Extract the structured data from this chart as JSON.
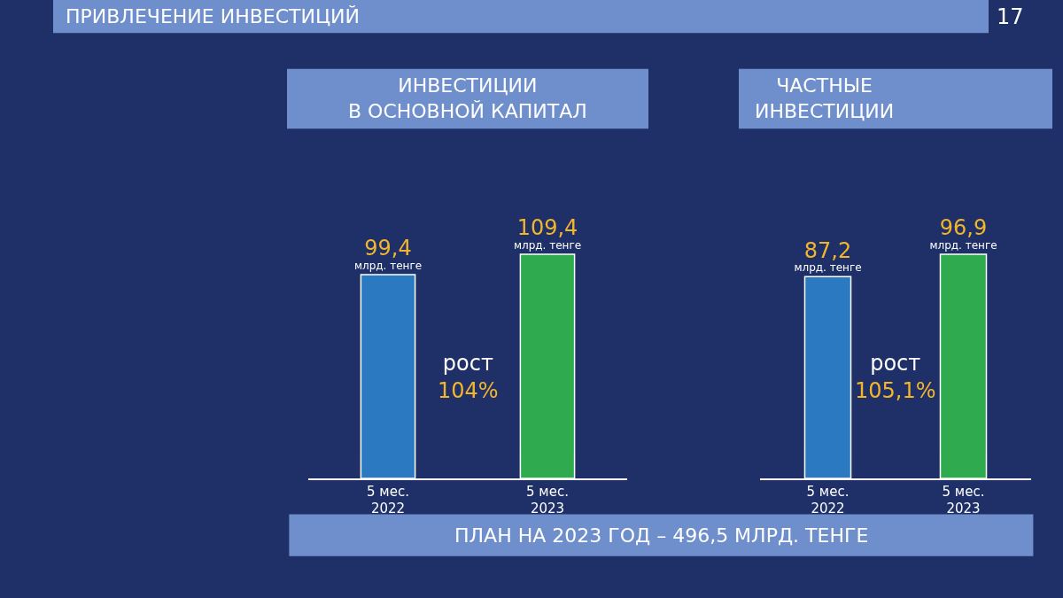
{
  "chart_data": [
    {
      "type": "other",
      "title": "ПРИВЛЕЧЕНИЕ ИНВЕСТИЦИЙ",
      "annotations": [
        "17",
        "ПЛАН НА 2023 ГОД – 496,5 МЛРД. ТЕНГЕ"
      ]
    },
    {
      "type": "bar",
      "title": "ИНВЕСТИЦИИ\nВ ОСНОВНОЙ КАПИТАЛ",
      "categories": [
        "5 мес.\n2022",
        "5 мес.\n2023"
      ],
      "values": [
        99.4,
        109.4
      ],
      "colors": [
        "#2a79c1",
        "#2faa4f"
      ],
      "value_labels": [
        "99,4\nмлрд. тенге",
        "109,4\nмлрд. тенге"
      ],
      "annotations": [
        "рост\n104%"
      ]
    },
    {
      "type": "bar",
      "title": "ЧАСТНЫЕ\nИНВЕСТИЦИИ",
      "categories": [
        "5 мес.\n2022",
        "5 мес.\n2023"
      ],
      "values": [
        87.2,
        96.9
      ],
      "colors": [
        "#2a79c1",
        "#2faa4f"
      ],
      "value_labels": [
        "87,2\nмлрд. тенге",
        "96,9\nмлрд. тенге"
      ],
      "annotations": [
        "рост\n105,1%"
      ]
    }
  ]
}
